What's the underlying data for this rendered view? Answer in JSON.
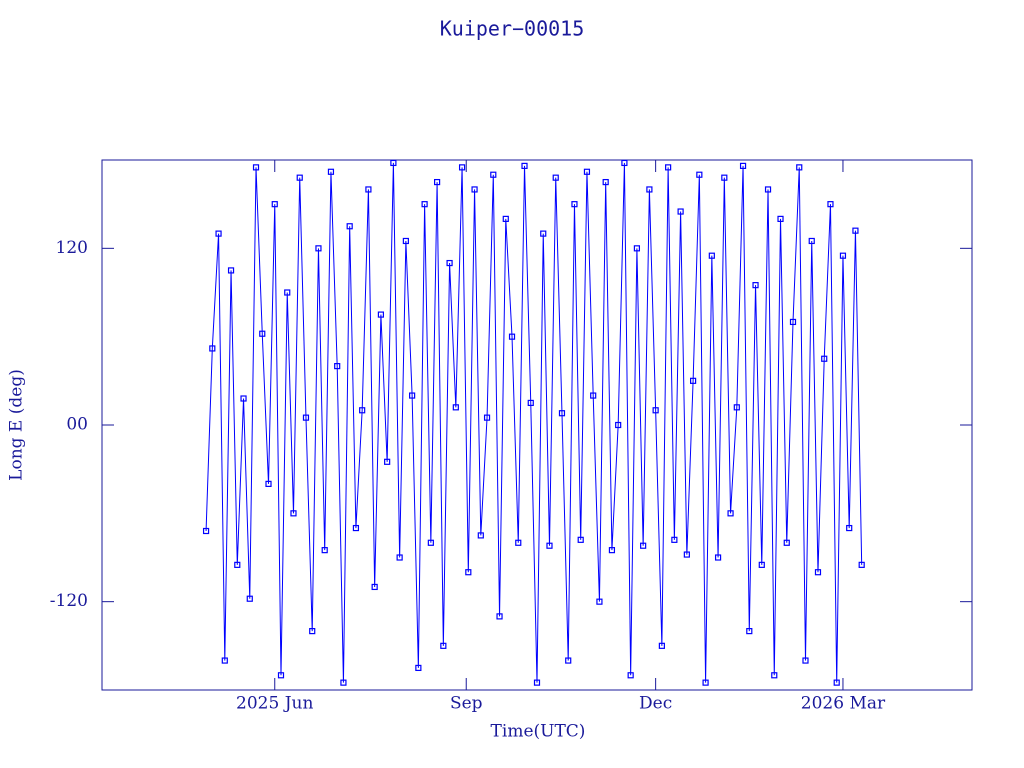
{
  "chart_data": {
    "type": "line",
    "title": "Kuiper−00015",
    "x_label": "Time(UTC)",
    "y_label": "Long E (deg)",
    "xlim": [
      68,
      486
    ],
    "xticks": [
      {
        "value": 151,
        "label": "2025 Jun"
      },
      {
        "value": 243,
        "label": "Sep"
      },
      {
        "value": 334,
        "label": "Dec"
      },
      {
        "value": 424,
        "label": "2026 Mar"
      }
    ],
    "ylim": [
      -180,
      180
    ],
    "yticks": [
      -120,
      {
        "value": 0,
        "label": "00"
      },
      120
    ],
    "series": [
      {
        "color": "#0000ff",
        "x": [
          118,
          121,
          124,
          127,
          130,
          133,
          136,
          139,
          142,
          145,
          148,
          151,
          154,
          157,
          160,
          163,
          166,
          169,
          172,
          175,
          178,
          181,
          184,
          187,
          190,
          193,
          196,
          199,
          202,
          205,
          208,
          211,
          214,
          217,
          220,
          223,
          226,
          229,
          232,
          235,
          238,
          241,
          244,
          247,
          250,
          253,
          256,
          259,
          262,
          265,
          268,
          271,
          274,
          277,
          280,
          283,
          286,
          289,
          292,
          295,
          298,
          301,
          304,
          307,
          310,
          313,
          316,
          319,
          322,
          325,
          328,
          331,
          334,
          337,
          340,
          343,
          346,
          349,
          352,
          355,
          358,
          361,
          364,
          367,
          370,
          373,
          376,
          379,
          382,
          385,
          388,
          391,
          394,
          397,
          400,
          403,
          406,
          409,
          412,
          415,
          418,
          421,
          424,
          427,
          430,
          433
        ],
        "values": [
          -72,
          52,
          130,
          -160,
          105,
          -95,
          18,
          -118,
          175,
          62,
          -40,
          150,
          -170,
          90,
          -60,
          168,
          5,
          -140,
          120,
          -85,
          172,
          40,
          -175,
          135,
          -70,
          10,
          160,
          -110,
          75,
          -25,
          178,
          -90,
          125,
          20,
          -165,
          150,
          -80,
          165,
          -150,
          110,
          12,
          175,
          -100,
          160,
          -75,
          5,
          170,
          -130,
          140,
          60,
          -80,
          176,
          15,
          -175,
          130,
          -82,
          168,
          8,
          -160,
          150,
          -78,
          172,
          20,
          -120,
          165,
          -85,
          0,
          178,
          -170,
          120,
          -82,
          160,
          10,
          -150,
          175,
          -78,
          145,
          -88,
          30,
          170,
          -175,
          115,
          -90,
          168,
          -60,
          12,
          176,
          -140,
          95,
          -95,
          160,
          -170,
          140,
          -80,
          70,
          175,
          -160,
          125,
          -100,
          45,
          150,
          -175,
          115,
          -70,
          132,
          -95
        ]
      }
    ]
  }
}
